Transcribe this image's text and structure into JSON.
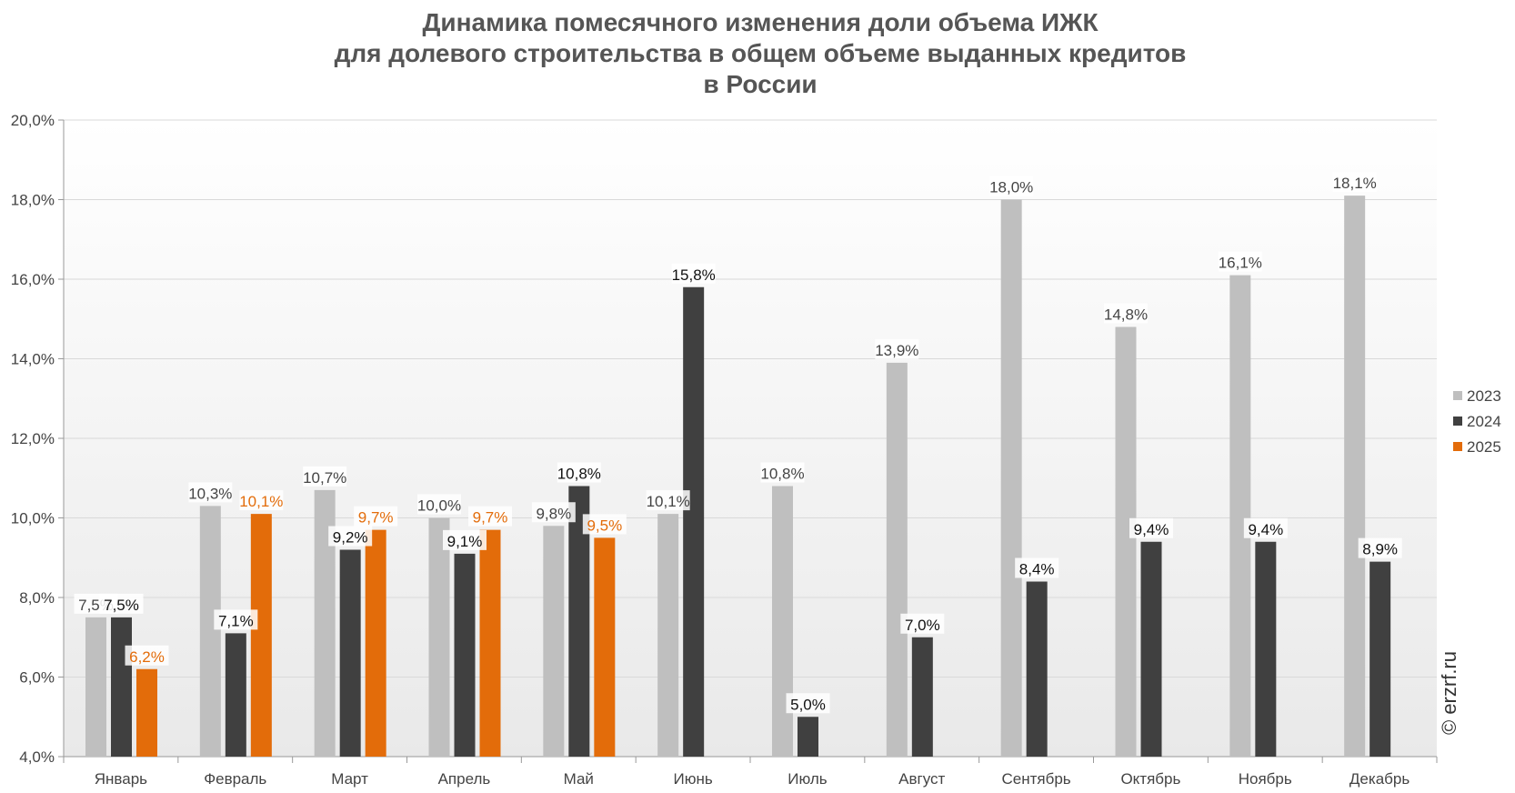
{
  "chart_data": {
    "type": "bar",
    "title": [
      "Динамика помесячного изменения доли объема ИЖК",
      "для долевого строительства в общем объеме выданных кредитов",
      "в России"
    ],
    "categories": [
      "Январь",
      "Февраль",
      "Март",
      "Апрель",
      "Май",
      "Июнь",
      "Июль",
      "Август",
      "Сентябрь",
      "Октябрь",
      "Ноябрь",
      "Декабрь"
    ],
    "series": [
      {
        "name": "2023",
        "color": "#bfbfbf",
        "label_color": "#444444",
        "values": [
          7.5,
          10.3,
          10.7,
          10.0,
          9.8,
          10.1,
          10.8,
          13.9,
          18.0,
          14.8,
          16.1,
          18.1
        ],
        "labels": [
          "7,5%",
          "10,3%",
          "10,7%",
          "10,0%",
          "9,8%",
          "10,1%",
          "10,8%",
          "13,9%",
          "18,0%",
          "14,8%",
          "16,1%",
          "18,1%"
        ]
      },
      {
        "name": "2024",
        "color": "#404040",
        "label_color": "#111111",
        "values": [
          7.5,
          7.1,
          9.2,
          9.1,
          10.8,
          15.8,
          5.0,
          7.0,
          8.4,
          9.4,
          9.4,
          8.9
        ],
        "labels": [
          "7,5%",
          "7,1%",
          "9,2%",
          "9,1%",
          "10,8%",
          "15,8%",
          "5,0%",
          "7,0%",
          "8,4%",
          "9,4%",
          "9,4%",
          "8,9%"
        ]
      },
      {
        "name": "2025",
        "color": "#e36c0a",
        "label_color": "#e36c0a",
        "values": [
          6.2,
          10.1,
          9.7,
          9.7,
          9.5,
          null,
          null,
          null,
          null,
          null,
          null,
          null
        ],
        "labels": [
          "6,2%",
          "10,1%",
          "9,7%",
          "9,7%",
          "9,5%",
          null,
          null,
          null,
          null,
          null,
          null,
          null
        ]
      }
    ],
    "ylim": [
      4.0,
      20.0
    ],
    "yticks": [
      "4,0%",
      "6,0%",
      "8,0%",
      "10,0%",
      "12,0%",
      "14,0%",
      "16,0%",
      "18,0%",
      "20,0%"
    ],
    "ytick_values": [
      4,
      6,
      8,
      10,
      12,
      14,
      16,
      18,
      20
    ],
    "grid": true,
    "legend": "right",
    "watermark": "© erzrf.ru"
  }
}
